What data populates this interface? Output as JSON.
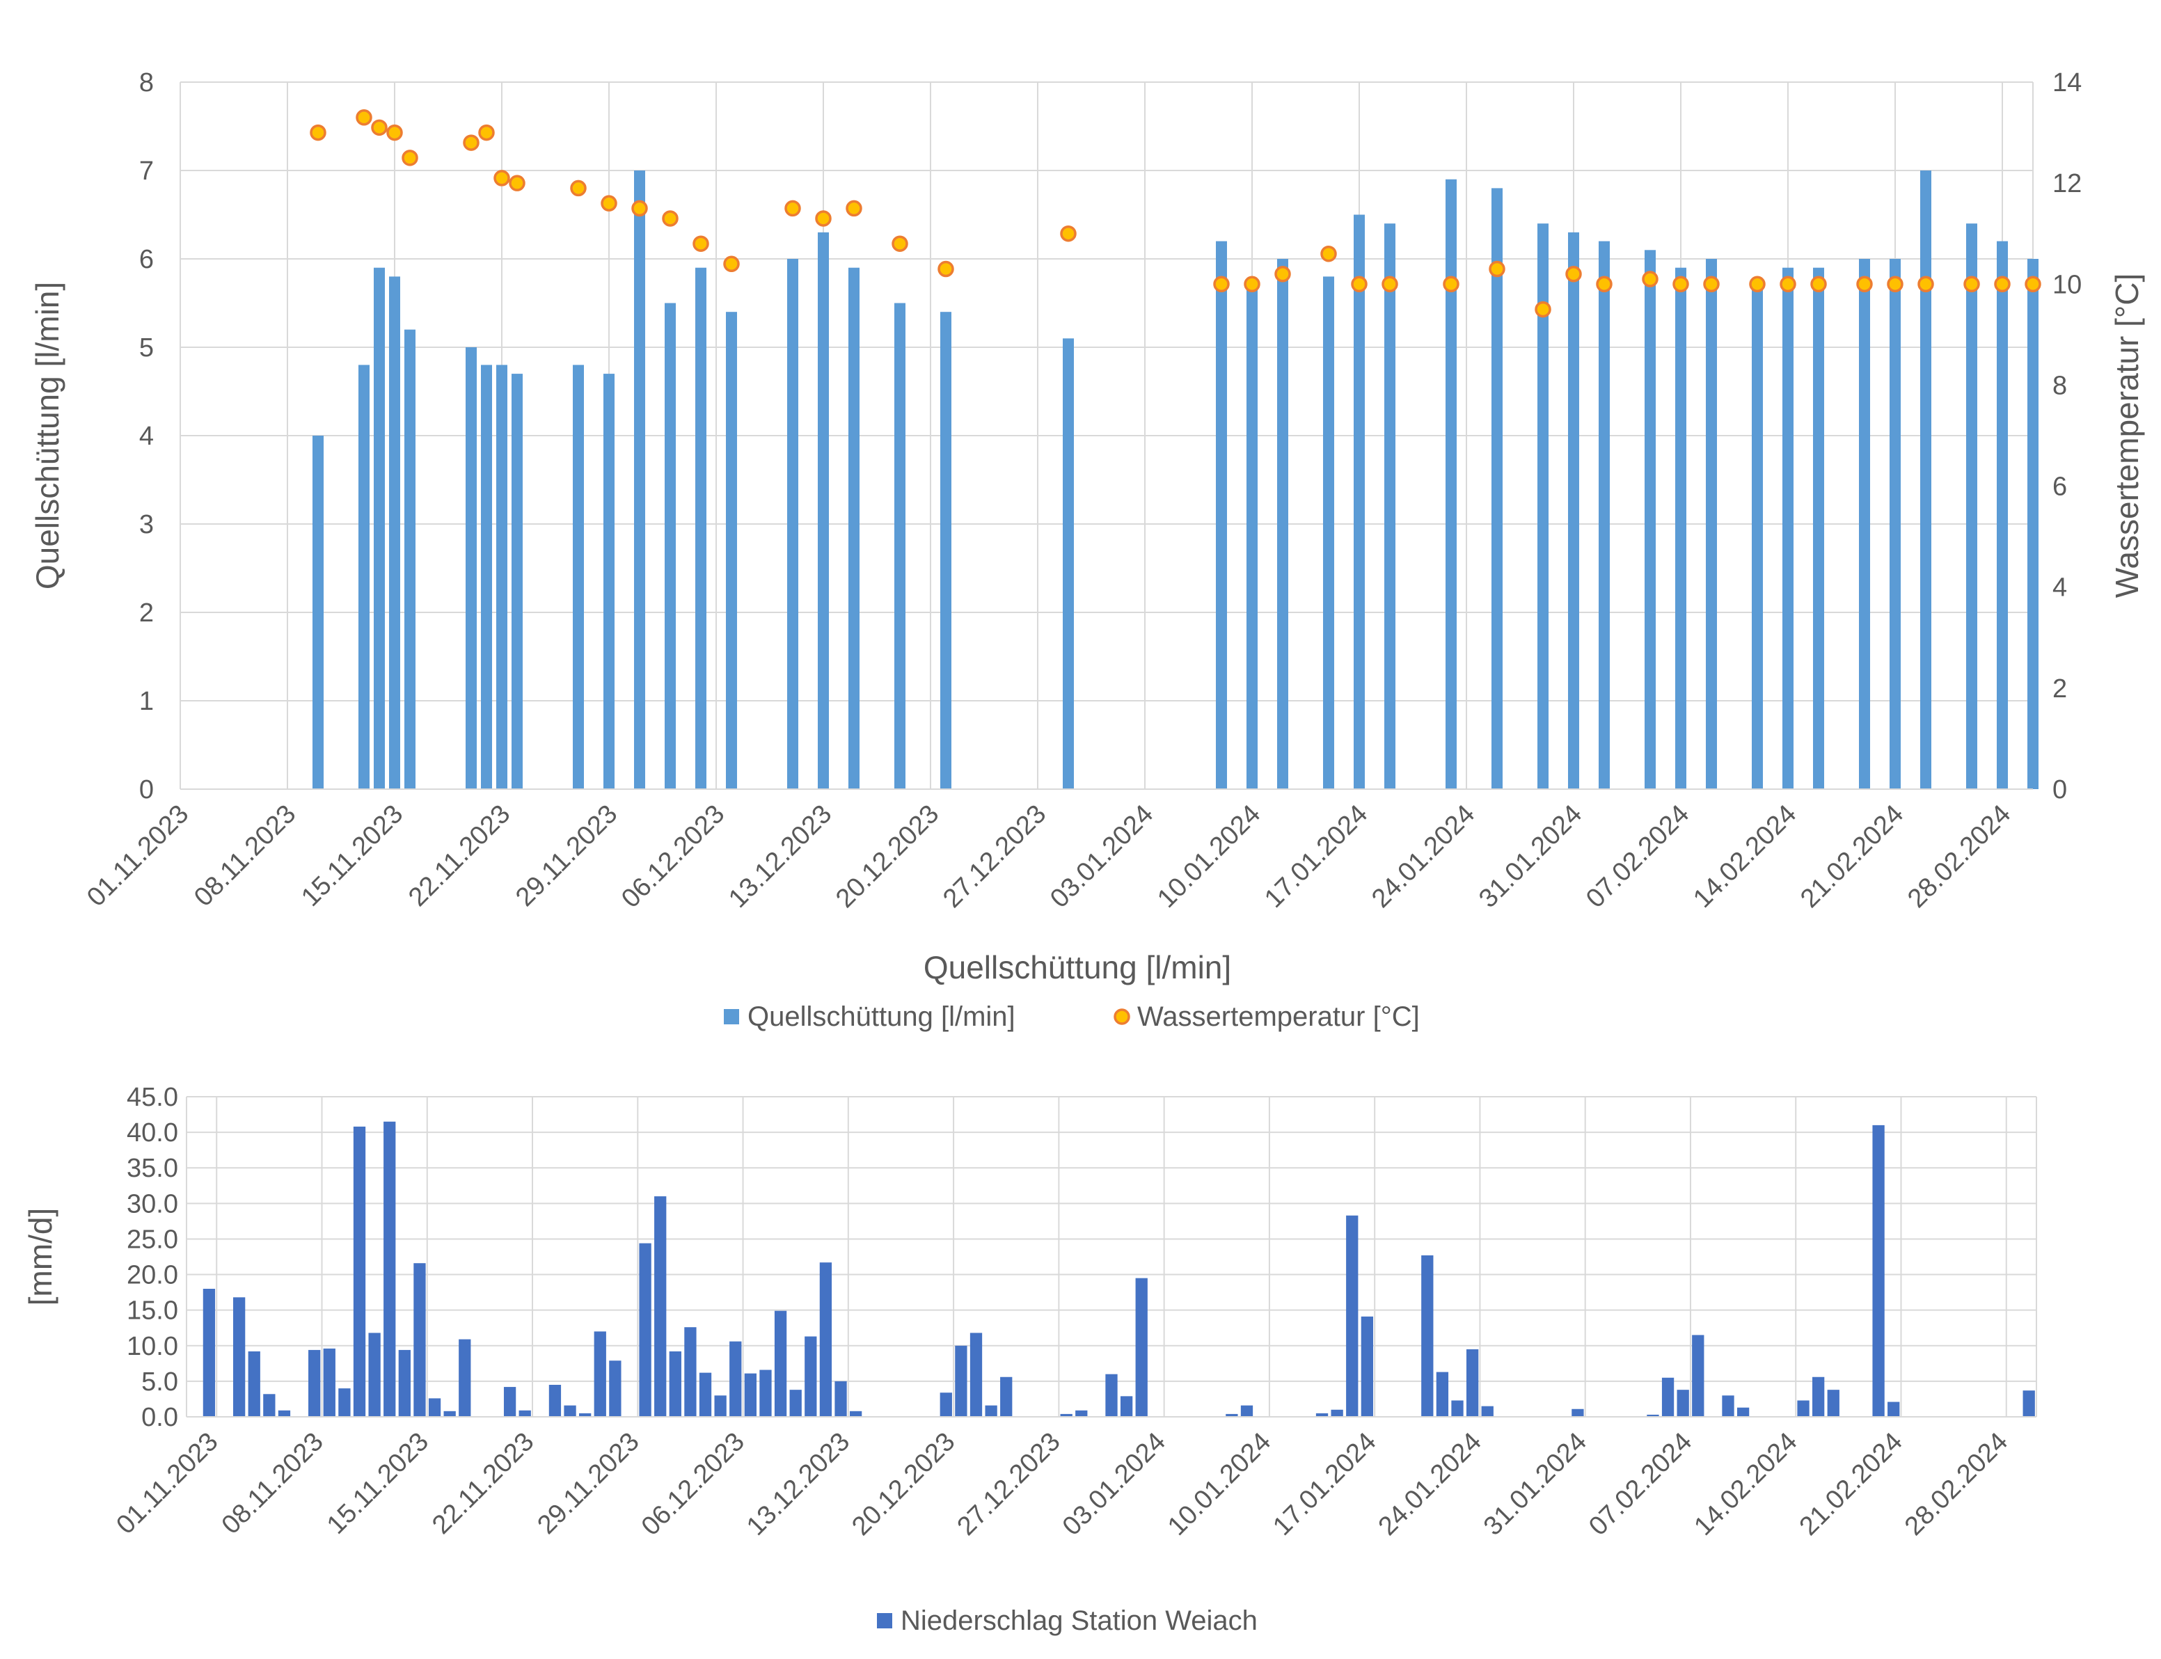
{
  "chart_data": [
    {
      "type": "bar+scatter",
      "x_axis": {
        "type": "date",
        "range": [
          "2023-11-01",
          "2024-03-01"
        ],
        "tick_labels": [
          "01.11.2023",
          "08.11.2023",
          "15.11.2023",
          "22.11.2023",
          "29.11.2023",
          "06.12.2023",
          "13.12.2023",
          "20.12.2023",
          "27.12.2023",
          "03.01.2024",
          "10.01.2024",
          "17.01.2024",
          "24.01.2024",
          "31.01.2024",
          "07.02.2024",
          "14.02.2024",
          "21.02.2024",
          "28.02.2024"
        ],
        "title": "Quellschüttung [l/min]"
      },
      "y_axis_left": {
        "label": "Quellschüttung [l/min]",
        "ylim": [
          0,
          8
        ],
        "ticks": [
          "0",
          "1",
          "2",
          "3",
          "4",
          "5",
          "6",
          "7",
          "8"
        ]
      },
      "y_axis_right": {
        "label": "Wassertemperatur [°C]",
        "ylim": [
          0,
          14
        ],
        "ticks": [
          "0",
          "2",
          "4",
          "6",
          "8",
          "10",
          "12",
          "14"
        ]
      },
      "grid": true,
      "legend_position": "bottom",
      "series": [
        {
          "name": "Quellschüttung [l/min]",
          "kind": "bar",
          "axis": "left",
          "color": "#5b9bd5",
          "points": [
            [
              "2023-11-10",
              4.0
            ],
            [
              "2023-11-13",
              4.8
            ],
            [
              "2023-11-14",
              5.9
            ],
            [
              "2023-11-15",
              5.8
            ],
            [
              "2023-11-16",
              5.2
            ],
            [
              "2023-11-20",
              5.0
            ],
            [
              "2023-11-21",
              4.8
            ],
            [
              "2023-11-22",
              4.8
            ],
            [
              "2023-11-23",
              4.7
            ],
            [
              "2023-11-27",
              4.8
            ],
            [
              "2023-11-29",
              4.7
            ],
            [
              "2023-12-01",
              7.0
            ],
            [
              "2023-12-03",
              5.5
            ],
            [
              "2023-12-05",
              5.9
            ],
            [
              "2023-12-07",
              5.4
            ],
            [
              "2023-12-11",
              6.0
            ],
            [
              "2023-12-13",
              6.3
            ],
            [
              "2023-12-15",
              5.9
            ],
            [
              "2023-12-18",
              5.5
            ],
            [
              "2023-12-21",
              5.4
            ],
            [
              "2023-12-29",
              5.1
            ],
            [
              "2024-01-08",
              6.2
            ],
            [
              "2024-01-10",
              5.7
            ],
            [
              "2024-01-12",
              6.0
            ],
            [
              "2024-01-15",
              5.8
            ],
            [
              "2024-01-17",
              6.5
            ],
            [
              "2024-01-19",
              6.4
            ],
            [
              "2024-01-23",
              6.9
            ],
            [
              "2024-01-26",
              6.8
            ],
            [
              "2024-01-29",
              6.4
            ],
            [
              "2024-01-31",
              6.3
            ],
            [
              "2024-02-02",
              6.2
            ],
            [
              "2024-02-05",
              6.1
            ],
            [
              "2024-02-07",
              5.9
            ],
            [
              "2024-02-09",
              6.0
            ],
            [
              "2024-02-12",
              5.7
            ],
            [
              "2024-02-14",
              5.9
            ],
            [
              "2024-02-16",
              5.9
            ],
            [
              "2024-02-19",
              6.0
            ],
            [
              "2024-02-21",
              6.0
            ],
            [
              "2024-02-23",
              7.0
            ],
            [
              "2024-02-26",
              6.4
            ],
            [
              "2024-02-28",
              6.2
            ],
            [
              "2024-03-01",
              6.0
            ]
          ]
        },
        {
          "name": "Wassertemperatur [°C]",
          "kind": "scatter",
          "axis": "right",
          "color": "#ffc000",
          "edge_color": "#ed7d31",
          "points": [
            [
              "2023-11-10",
              13.0
            ],
            [
              "2023-11-13",
              13.3
            ],
            [
              "2023-11-14",
              13.1
            ],
            [
              "2023-11-15",
              13.0
            ],
            [
              "2023-11-16",
              12.5
            ],
            [
              "2023-11-20",
              12.8
            ],
            [
              "2023-11-21",
              13.0
            ],
            [
              "2023-11-22",
              12.1
            ],
            [
              "2023-11-23",
              12.0
            ],
            [
              "2023-11-27",
              11.9
            ],
            [
              "2023-11-29",
              11.6
            ],
            [
              "2023-12-01",
              11.5
            ],
            [
              "2023-12-03",
              11.3
            ],
            [
              "2023-12-05",
              10.8
            ],
            [
              "2023-12-07",
              10.4
            ],
            [
              "2023-12-11",
              11.5
            ],
            [
              "2023-12-13",
              11.3
            ],
            [
              "2023-12-15",
              11.5
            ],
            [
              "2023-12-18",
              10.8
            ],
            [
              "2023-12-21",
              10.3
            ],
            [
              "2023-12-29",
              11.0
            ],
            [
              "2024-01-08",
              10.0
            ],
            [
              "2024-01-10",
              10.0
            ],
            [
              "2024-01-12",
              10.2
            ],
            [
              "2024-01-15",
              10.6
            ],
            [
              "2024-01-17",
              10.0
            ],
            [
              "2024-01-19",
              10.0
            ],
            [
              "2024-01-23",
              10.0
            ],
            [
              "2024-01-26",
              10.3
            ],
            [
              "2024-01-29",
              9.5
            ],
            [
              "2024-01-31",
              10.2
            ],
            [
              "2024-02-02",
              10.0
            ],
            [
              "2024-02-05",
              10.1
            ],
            [
              "2024-02-07",
              10.0
            ],
            [
              "2024-02-09",
              10.0
            ],
            [
              "2024-02-12",
              10.0
            ],
            [
              "2024-02-14",
              10.0
            ],
            [
              "2024-02-16",
              10.0
            ],
            [
              "2024-02-19",
              10.0
            ],
            [
              "2024-02-21",
              10.0
            ],
            [
              "2024-02-23",
              10.0
            ],
            [
              "2024-02-26",
              10.0
            ],
            [
              "2024-02-28",
              10.0
            ],
            [
              "2024-03-01",
              10.0
            ]
          ]
        }
      ]
    },
    {
      "type": "bar",
      "x_axis": {
        "type": "date",
        "range": [
          "2023-10-31",
          "2024-03-01"
        ],
        "tick_labels": [
          "01.11.2023",
          "08.11.2023",
          "15.11.2023",
          "22.11.2023",
          "29.11.2023",
          "06.12.2023",
          "13.12.2023",
          "20.12.2023",
          "27.12.2023",
          "03.01.2024",
          "10.01.2024",
          "17.01.2024",
          "24.01.2024",
          "31.01.2024",
          "07.02.2024",
          "14.02.2024",
          "21.02.2024",
          "28.02.2024"
        ]
      },
      "y_axis": {
        "label": "[mm/d]",
        "ylim": [
          0,
          45
        ],
        "ticks": [
          "0.0",
          "5.0",
          "10.0",
          "15.0",
          "20.0",
          "25.0",
          "30.0",
          "35.0",
          "40.0",
          "45.0"
        ]
      },
      "grid": true,
      "legend_position": "bottom",
      "series": [
        {
          "name": "Niederschlag Station Weiach",
          "color": "#4472c4",
          "points": [
            [
              "2023-11-01",
              18.0
            ],
            [
              "2023-11-03",
              16.8
            ],
            [
              "2023-11-04",
              9.2
            ],
            [
              "2023-11-05",
              3.2
            ],
            [
              "2023-11-06",
              0.9
            ],
            [
              "2023-11-08",
              9.4
            ],
            [
              "2023-11-09",
              9.6
            ],
            [
              "2023-11-10",
              4.0
            ],
            [
              "2023-11-11",
              40.8
            ],
            [
              "2023-11-12",
              11.8
            ],
            [
              "2023-11-13",
              41.5
            ],
            [
              "2023-11-14",
              9.4
            ],
            [
              "2023-11-15",
              21.6
            ],
            [
              "2023-11-16",
              2.6
            ],
            [
              "2023-11-17",
              0.8
            ],
            [
              "2023-11-18",
              10.9
            ],
            [
              "2023-11-21",
              4.2
            ],
            [
              "2023-11-22",
              0.9
            ],
            [
              "2023-11-24",
              4.5
            ],
            [
              "2023-11-25",
              1.6
            ],
            [
              "2023-11-26",
              0.5
            ],
            [
              "2023-11-27",
              12.0
            ],
            [
              "2023-11-28",
              7.9
            ],
            [
              "2023-11-30",
              24.4
            ],
            [
              "2023-12-01",
              31.0
            ],
            [
              "2023-12-02",
              9.2
            ],
            [
              "2023-12-03",
              12.6
            ],
            [
              "2023-12-04",
              6.2
            ],
            [
              "2023-12-05",
              3.0
            ],
            [
              "2023-12-06",
              10.6
            ],
            [
              "2023-12-07",
              6.1
            ],
            [
              "2023-12-08",
              6.6
            ],
            [
              "2023-12-09",
              14.9
            ],
            [
              "2023-12-10",
              3.8
            ],
            [
              "2023-12-11",
              11.3
            ],
            [
              "2023-12-12",
              21.7
            ],
            [
              "2023-12-13",
              5.0
            ],
            [
              "2023-12-14",
              0.8
            ],
            [
              "2023-12-20",
              3.4
            ],
            [
              "2023-12-21",
              10.0
            ],
            [
              "2023-12-22",
              11.8
            ],
            [
              "2023-12-23",
              1.6
            ],
            [
              "2023-12-24",
              5.6
            ],
            [
              "2023-12-28",
              0.4
            ],
            [
              "2023-12-29",
              0.9
            ],
            [
              "2023-12-31",
              6.0
            ],
            [
              "2024-01-01",
              2.9
            ],
            [
              "2024-01-02",
              19.5
            ],
            [
              "2024-01-08",
              0.4
            ],
            [
              "2024-01-09",
              1.6
            ],
            [
              "2024-01-14",
              0.5
            ],
            [
              "2024-01-15",
              1.0
            ],
            [
              "2024-01-16",
              28.3
            ],
            [
              "2024-01-17",
              14.1
            ],
            [
              "2024-01-21",
              22.7
            ],
            [
              "2024-01-22",
              6.3
            ],
            [
              "2024-01-23",
              2.3
            ],
            [
              "2024-01-24",
              9.5
            ],
            [
              "2024-01-25",
              1.5
            ],
            [
              "2024-01-31",
              1.1
            ],
            [
              "2024-02-05",
              0.3
            ],
            [
              "2024-02-06",
              5.5
            ],
            [
              "2024-02-07",
              3.8
            ],
            [
              "2024-02-08",
              11.5
            ],
            [
              "2024-02-10",
              3.0
            ],
            [
              "2024-02-11",
              1.3
            ],
            [
              "2024-02-15",
              2.3
            ],
            [
              "2024-02-16",
              5.6
            ],
            [
              "2024-02-17",
              3.8
            ],
            [
              "2024-02-20",
              41.0
            ],
            [
              "2024-02-21",
              2.1
            ],
            [
              "2024-03-01",
              3.7
            ]
          ]
        }
      ]
    }
  ]
}
